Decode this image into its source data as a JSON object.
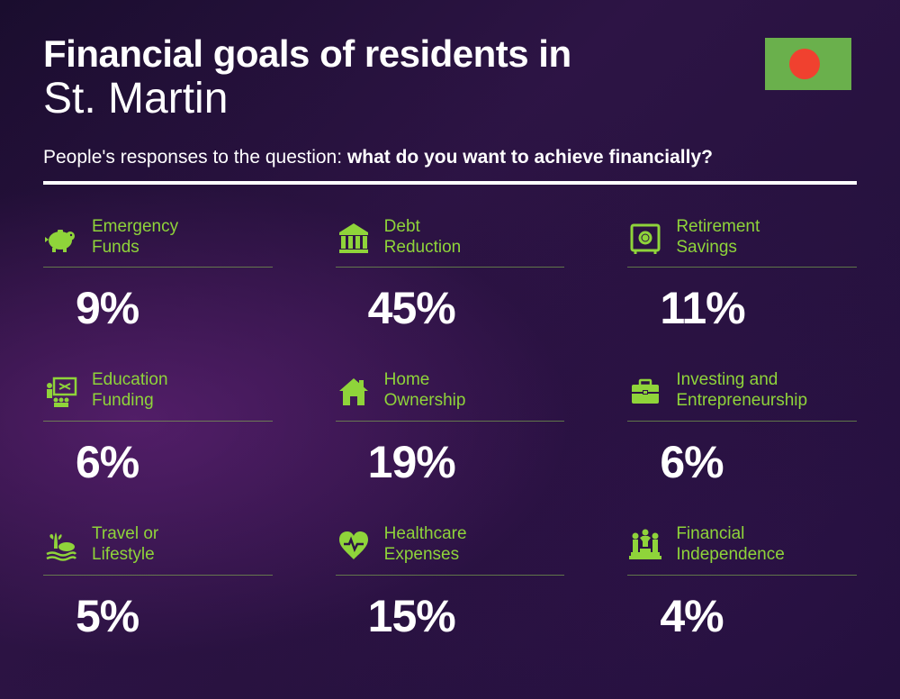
{
  "title": {
    "line1": "Financial goals of residents in",
    "line2": "St. Martin"
  },
  "subtitle": {
    "prefix": "People's responses to the question: ",
    "bold": "what do you want to achieve financially?"
  },
  "flag": {
    "bg_color": "#6ab04c",
    "circle_color": "#f0412f"
  },
  "colors": {
    "accent": "#8fd43a",
    "text": "#ffffff",
    "divider": "#ffffff"
  },
  "items": [
    {
      "label": "Emergency\nFunds",
      "value": "9%",
      "icon": "piggy"
    },
    {
      "label": "Debt\nReduction",
      "value": "45%",
      "icon": "bank"
    },
    {
      "label": "Retirement\nSavings",
      "value": "11%",
      "icon": "safe"
    },
    {
      "label": "Education\nFunding",
      "value": "6%",
      "icon": "education"
    },
    {
      "label": "Home\nOwnership",
      "value": "19%",
      "icon": "home"
    },
    {
      "label": "Investing and\nEntrepreneurship",
      "value": "6%",
      "icon": "briefcase"
    },
    {
      "label": "Travel or\nLifestyle",
      "value": "5%",
      "icon": "travel"
    },
    {
      "label": "Healthcare\nExpenses",
      "value": "15%",
      "icon": "health"
    },
    {
      "label": "Financial\nIndependence",
      "value": "4%",
      "icon": "independence"
    }
  ]
}
